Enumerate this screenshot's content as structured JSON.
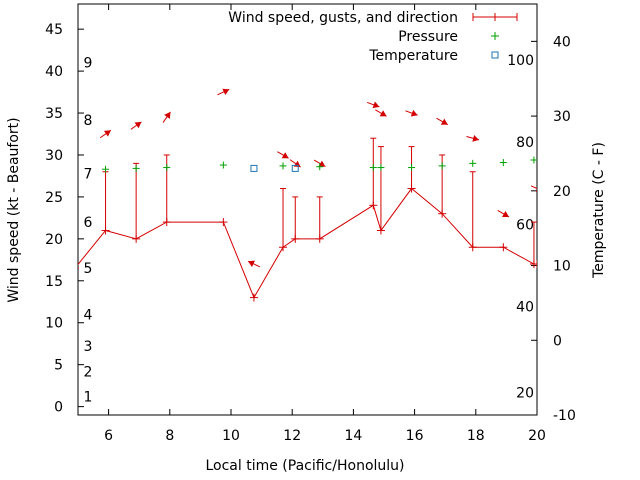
{
  "chart_data": {
    "type": "line",
    "xlabel": "Local time (Pacific/Honolulu)",
    "ylabel_left": "Wind speed (kt - Beaufort)",
    "ylabel_right": "Temperature (C - F)",
    "x_range": [
      5,
      20
    ],
    "x_ticks": [
      "6",
      "8",
      "10",
      "12",
      "14",
      "16",
      "18",
      "20"
    ],
    "y_left_range": [
      -1,
      48
    ],
    "y_left_ticks": [
      "0",
      "5",
      "10",
      "15",
      "20",
      "25",
      "30",
      "35",
      "40",
      "45"
    ],
    "y_right_range": [
      -10,
      45
    ],
    "y_right_ticks": [
      "-10",
      "0",
      "10",
      "20",
      "30",
      "40"
    ],
    "beaufort_labels": [
      {
        "text": "1",
        "y": 1.2
      },
      {
        "text": "2",
        "y": 4.2
      },
      {
        "text": "3",
        "y": 7.2
      },
      {
        "text": "4",
        "y": 11
      },
      {
        "text": "5",
        "y": 16.5
      },
      {
        "text": "6",
        "y": 22
      },
      {
        "text": "7",
        "y": 27.8
      },
      {
        "text": "8",
        "y": 34.2
      },
      {
        "text": "9",
        "y": 41
      }
    ],
    "fahrenheit_labels": [
      {
        "text": "20",
        "t": -7
      },
      {
        "text": "40",
        "t": 4.5
      },
      {
        "text": "60",
        "t": 15.5
      },
      {
        "text": "80",
        "t": 26.5
      },
      {
        "text": "100",
        "t": 37.5
      }
    ],
    "legend": [
      {
        "label": "Wind speed, gusts, and direction",
        "color": "#d40000"
      },
      {
        "label": "Pressure",
        "color": "#00a000"
      },
      {
        "label": "Temperature",
        "color": "#1f77b4"
      }
    ],
    "legend_position": "top-right",
    "series": [
      {
        "name": "Wind speed, gusts, and direction",
        "color": "#d40000",
        "x": [
          4.9,
          5.9,
          6.9,
          7.9,
          9.75,
          10.75,
          11.7,
          12.1,
          12.9,
          14.65,
          14.9,
          15.9,
          16.9,
          17.9,
          18.9,
          19.9,
          20
        ],
        "y": [
          16.5,
          21,
          20,
          22,
          22,
          13,
          19,
          20,
          20,
          24,
          21,
          26,
          23,
          19,
          19,
          17,
          17
        ],
        "gusts": [
          null,
          28,
          29,
          30,
          null,
          null,
          26,
          25,
          25,
          32,
          31,
          31,
          30,
          28,
          null,
          22,
          null
        ],
        "direction_deg": [
          null,
          235,
          235,
          215,
          245,
          115,
          300,
          305,
          300,
          290,
          300,
          290,
          300,
          285,
          300,
          300,
          295
        ],
        "arrow_y": [
          null,
          32.5,
          33.5,
          34.5,
          37.5,
          17,
          30,
          29,
          29,
          36,
          35,
          35,
          34,
          32,
          23,
          null,
          26
        ]
      },
      {
        "name": "Pressure",
        "color": "#00a000",
        "x": [
          5.9,
          6.9,
          7.9,
          9.75,
          11.7,
          12.9,
          14.65,
          14.9,
          15.9,
          16.9,
          17.9,
          18.9,
          19.9
        ],
        "y": [
          28.3,
          28.4,
          28.5,
          28.8,
          28.7,
          28.6,
          28.5,
          28.5,
          28.5,
          28.7,
          29.0,
          29.1,
          29.4
        ]
      },
      {
        "name": "Temperature",
        "color": "#1f77b4",
        "x": [
          10.75,
          12.1
        ],
        "y": [
          23,
          23
        ]
      }
    ]
  }
}
